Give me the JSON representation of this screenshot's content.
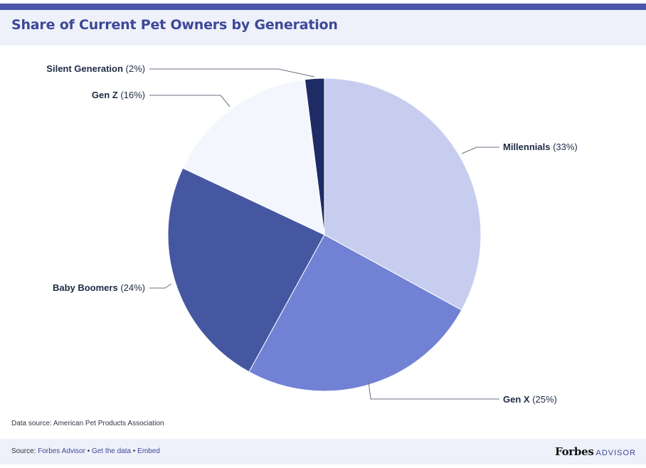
{
  "title": "Share of Current Pet Owners by Generation",
  "chart_data": {
    "type": "pie",
    "title": "Share of Current Pet Owners by Generation",
    "slices": [
      {
        "label": "Millennials",
        "value": 33,
        "value_text": "(33%)",
        "color": "#c7cdee"
      },
      {
        "label": "Gen X",
        "value": 25,
        "value_text": "(25%)",
        "color": "#7182d5"
      },
      {
        "label": "Baby Boomers",
        "value": 24,
        "value_text": "(24%)",
        "color": "#4657a2"
      },
      {
        "label": "Gen Z",
        "value": 16,
        "value_text": "(16%)",
        "color": "#f3f6fd"
      },
      {
        "label": "Silent Generation",
        "value": 2,
        "value_text": "(2%)",
        "color": "#1f2b65"
      }
    ]
  },
  "data_source": "Data source: American Pet Products Association",
  "footer": {
    "source_prefix": "Source:",
    "links": [
      {
        "label": "Forbes Advisor"
      },
      {
        "label": "Get the data"
      },
      {
        "label": "Embed"
      }
    ],
    "separator": "•",
    "brand_word": "Forbes",
    "brand_sub": "ADVISOR"
  }
}
